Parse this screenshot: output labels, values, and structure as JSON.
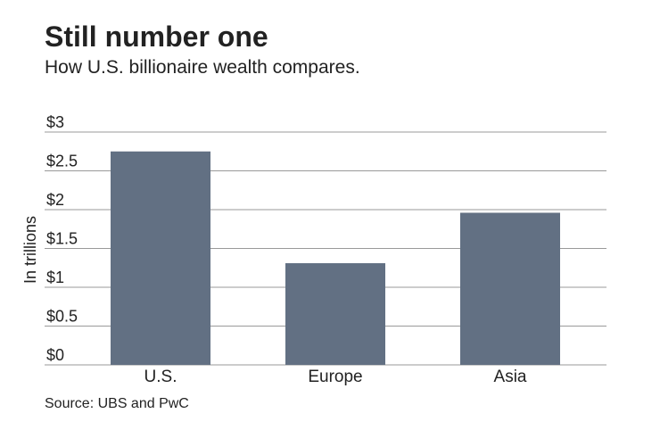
{
  "chart_data": {
    "type": "bar",
    "title": "Still number one",
    "subtitle": "How U.S. billionaire wealth compares.",
    "y_label": "In trillions",
    "source": "Source: UBS and PwC",
    "categories": [
      "U.S.",
      "Europe",
      "Asia"
    ],
    "values": [
      2.75,
      1.31,
      1.96
    ],
    "color": "#627083",
    "ylim": [
      0,
      3
    ],
    "yticks": [
      {
        "value": 0,
        "label": "$0"
      },
      {
        "value": 0.5,
        "label": "$0.5"
      },
      {
        "value": 1,
        "label": "$1"
      },
      {
        "value": 1.5,
        "label": "$1.5"
      },
      {
        "value": 2,
        "label": "$2"
      },
      {
        "value": 2.5,
        "label": "$2.5"
      },
      {
        "value": 3,
        "label": "$3"
      }
    ],
    "grid": true
  }
}
